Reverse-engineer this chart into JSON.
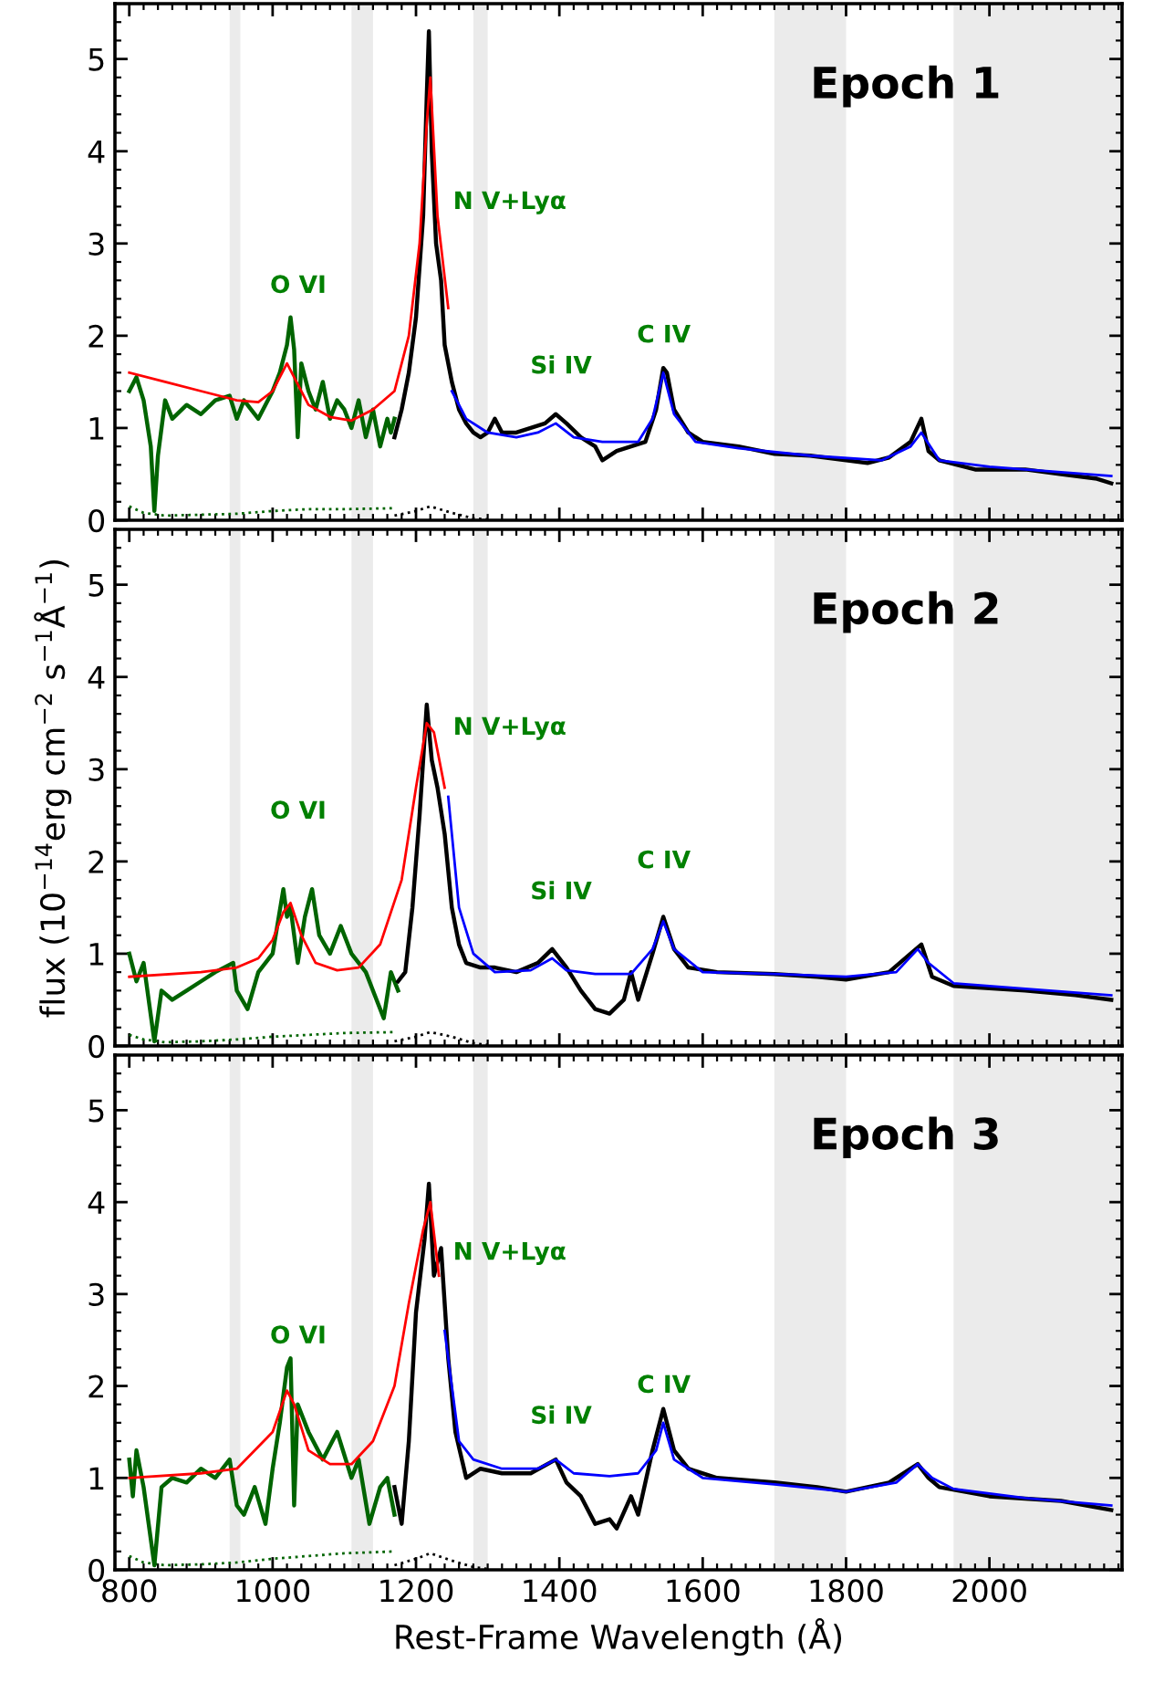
{
  "chart_data": [
    {
      "type": "line",
      "title": "Epoch 1",
      "xlim": [
        780,
        2185
      ],
      "ylim": [
        0,
        5.6
      ],
      "xticks": [
        800,
        1000,
        1200,
        1400,
        1600,
        1800,
        2000
      ],
      "yticks": [
        0,
        1,
        2,
        3,
        4,
        5
      ],
      "tick_labels": "y",
      "grid": false,
      "legend": false,
      "marker": "none",
      "bands": [
        {
          "axis": "x",
          "from": 940,
          "to": 955,
          "color": "#ebebeb"
        },
        {
          "axis": "x",
          "from": 1110,
          "to": 1140,
          "color": "#ebebeb"
        },
        {
          "axis": "x",
          "from": 1280,
          "to": 1300,
          "color": "#ebebeb"
        },
        {
          "axis": "x",
          "from": 1700,
          "to": 1800,
          "color": "#ebebeb"
        },
        {
          "axis": "x",
          "from": 1950,
          "to": 2185,
          "color": "#ebebeb"
        }
      ],
      "annotations": [
        "O VI",
        "N V+Lyα",
        "Si IV",
        "C IV"
      ],
      "series": [
        {
          "color": "#006400",
          "line_style": "solid",
          "x": [
            800,
            810,
            820,
            830,
            835,
            840,
            850,
            860,
            880,
            900,
            920,
            940,
            950,
            960,
            980,
            1000,
            1010,
            1020,
            1025,
            1030,
            1035,
            1040,
            1050,
            1060,
            1070,
            1080,
            1090,
            1100,
            1110,
            1120,
            1130,
            1140,
            1150,
            1160,
            1165,
            1170
          ],
          "values": [
            1.4,
            1.55,
            1.3,
            0.8,
            0.1,
            0.7,
            1.3,
            1.1,
            1.25,
            1.15,
            1.3,
            1.35,
            1.1,
            1.3,
            1.1,
            1.4,
            1.6,
            1.9,
            2.2,
            1.85,
            0.9,
            1.7,
            1.4,
            1.2,
            1.5,
            1.1,
            1.3,
            1.2,
            1.0,
            1.3,
            0.9,
            1.2,
            0.8,
            1.1,
            0.95,
            1.1
          ]
        },
        {
          "color": "#000000",
          "line_style": "solid",
          "x": [
            1170,
            1180,
            1190,
            1200,
            1210,
            1215,
            1218,
            1222,
            1228,
            1235,
            1240,
            1250,
            1260,
            1270,
            1280,
            1290,
            1300,
            1310,
            1320,
            1340,
            1360,
            1380,
            1395,
            1410,
            1430,
            1450,
            1460,
            1480,
            1500,
            1520,
            1535,
            1545,
            1550,
            1560,
            1580,
            1600,
            1650,
            1700,
            1750,
            1800,
            1830,
            1860,
            1890,
            1905,
            1915,
            1930,
            1980,
            2050,
            2100,
            2150,
            2170
          ],
          "values": [
            0.9,
            1.2,
            1.6,
            2.2,
            3.3,
            4.6,
            5.3,
            4.0,
            3.0,
            2.6,
            1.9,
            1.5,
            1.2,
            1.05,
            0.95,
            0.9,
            0.95,
            1.1,
            0.95,
            0.95,
            1.0,
            1.05,
            1.15,
            1.05,
            0.9,
            0.8,
            0.65,
            0.75,
            0.8,
            0.85,
            1.2,
            1.65,
            1.6,
            1.2,
            0.95,
            0.85,
            0.8,
            0.72,
            0.7,
            0.65,
            0.62,
            0.68,
            0.85,
            1.1,
            0.75,
            0.65,
            0.55,
            0.55,
            0.5,
            0.45,
            0.4
          ]
        },
        {
          "color": "#ff0000",
          "line_style": "solid",
          "x": [
            800,
            850,
            900,
            950,
            980,
            1000,
            1020,
            1030,
            1050,
            1080,
            1110,
            1140,
            1170,
            1190,
            1205,
            1215,
            1220,
            1230,
            1245
          ],
          "values": [
            1.6,
            1.5,
            1.4,
            1.3,
            1.28,
            1.4,
            1.7,
            1.55,
            1.25,
            1.12,
            1.08,
            1.2,
            1.4,
            2.0,
            3.0,
            4.3,
            4.8,
            3.3,
            2.3
          ]
        },
        {
          "color": "#0000ff",
          "line_style": "solid",
          "x": [
            1250,
            1270,
            1300,
            1340,
            1370,
            1395,
            1420,
            1460,
            1510,
            1530,
            1545,
            1560,
            1590,
            1650,
            1750,
            1850,
            1890,
            1905,
            1930,
            2000,
            2100,
            2170
          ],
          "values": [
            1.4,
            1.1,
            0.95,
            0.9,
            0.95,
            1.05,
            0.9,
            0.85,
            0.85,
            1.1,
            1.6,
            1.15,
            0.85,
            0.78,
            0.7,
            0.65,
            0.8,
            0.95,
            0.65,
            0.58,
            0.52,
            0.48
          ]
        },
        {
          "color": "#006400",
          "line_style": "dotted",
          "x": [
            800,
            820,
            850,
            900,
            950,
            1000,
            1050,
            1100,
            1170
          ],
          "values": [
            0.15,
            0.08,
            0.05,
            0.06,
            0.07,
            0.1,
            0.12,
            0.12,
            0.13
          ]
        },
        {
          "color": "#000000",
          "line_style": "dotted",
          "x": [
            1170,
            1200,
            1220,
            1250,
            1280,
            1300
          ],
          "values": [
            0.05,
            0.1,
            0.15,
            0.08,
            0.02,
            0.01
          ]
        }
      ]
    },
    {
      "type": "line",
      "title": "Epoch 2",
      "ylabel": "flux (10$^{−14}$erg cm$^{−2}$ s$^{−1}$Å$^{−1}$)",
      "xlim": [
        780,
        2185
      ],
      "ylim": [
        0,
        5.6
      ],
      "xticks": [
        800,
        1000,
        1200,
        1400,
        1600,
        1800,
        2000
      ],
      "yticks": [
        0,
        1,
        2,
        3,
        4,
        5
      ],
      "tick_labels": "y",
      "grid": false,
      "legend": false,
      "marker": "none",
      "bands": [
        {
          "axis": "x",
          "from": 940,
          "to": 955,
          "color": "#ebebeb"
        },
        {
          "axis": "x",
          "from": 1110,
          "to": 1140,
          "color": "#ebebeb"
        },
        {
          "axis": "x",
          "from": 1280,
          "to": 1300,
          "color": "#ebebeb"
        },
        {
          "axis": "x",
          "from": 1700,
          "to": 1800,
          "color": "#ebebeb"
        },
        {
          "axis": "x",
          "from": 1950,
          "to": 2185,
          "color": "#ebebeb"
        }
      ],
      "annotations": [
        "O VI",
        "N V+Lyα",
        "Si IV",
        "C IV"
      ],
      "series": [
        {
          "color": "#006400",
          "line_style": "solid",
          "x": [
            800,
            810,
            820,
            835,
            845,
            860,
            880,
            900,
            920,
            945,
            950,
            965,
            980,
            1000,
            1015,
            1020,
            1025,
            1035,
            1045,
            1055,
            1065,
            1080,
            1095,
            1110,
            1130,
            1145,
            1155,
            1165,
            1175
          ],
          "values": [
            1.0,
            0.7,
            0.9,
            0.05,
            0.6,
            0.5,
            0.6,
            0.7,
            0.8,
            0.9,
            0.6,
            0.4,
            0.8,
            1.0,
            1.7,
            1.4,
            1.5,
            0.9,
            1.4,
            1.7,
            1.2,
            1.0,
            1.3,
            1.0,
            0.8,
            0.5,
            0.3,
            0.8,
            0.6
          ]
        },
        {
          "color": "#000000",
          "line_style": "solid",
          "x": [
            1175,
            1185,
            1195,
            1205,
            1215,
            1222,
            1230,
            1240,
            1250,
            1260,
            1270,
            1290,
            1310,
            1340,
            1370,
            1390,
            1410,
            1430,
            1450,
            1470,
            1490,
            1500,
            1510,
            1530,
            1545,
            1560,
            1580,
            1620,
            1700,
            1760,
            1800,
            1860,
            1890,
            1905,
            1920,
            1950,
            2050,
            2120,
            2170
          ],
          "values": [
            0.7,
            0.8,
            1.5,
            2.5,
            3.7,
            3.1,
            2.8,
            2.3,
            1.5,
            1.1,
            0.9,
            0.85,
            0.85,
            0.8,
            0.9,
            1.05,
            0.85,
            0.6,
            0.4,
            0.35,
            0.5,
            0.8,
            0.5,
            1.0,
            1.4,
            1.05,
            0.85,
            0.8,
            0.78,
            0.75,
            0.72,
            0.8,
            1.0,
            1.1,
            0.75,
            0.65,
            0.6,
            0.55,
            0.5
          ]
        },
        {
          "color": "#ff0000",
          "line_style": "solid",
          "x": [
            800,
            900,
            950,
            980,
            1000,
            1015,
            1025,
            1040,
            1060,
            1090,
            1120,
            1150,
            1180,
            1200,
            1215,
            1225,
            1240
          ],
          "values": [
            0.75,
            0.8,
            0.85,
            0.95,
            1.15,
            1.45,
            1.55,
            1.2,
            0.9,
            0.82,
            0.85,
            1.1,
            1.8,
            2.8,
            3.5,
            3.4,
            2.8
          ]
        },
        {
          "color": "#0000ff",
          "line_style": "solid",
          "x": [
            1245,
            1260,
            1280,
            1310,
            1360,
            1390,
            1410,
            1450,
            1500,
            1530,
            1545,
            1560,
            1600,
            1700,
            1800,
            1870,
            1900,
            1915,
            1950,
            2050,
            2170
          ],
          "values": [
            2.7,
            1.5,
            1.0,
            0.8,
            0.82,
            0.95,
            0.82,
            0.78,
            0.78,
            1.05,
            1.35,
            1.05,
            0.8,
            0.78,
            0.75,
            0.8,
            1.05,
            0.9,
            0.68,
            0.62,
            0.55
          ]
        },
        {
          "color": "#006400",
          "line_style": "dotted",
          "x": [
            800,
            820,
            850,
            900,
            950,
            1000,
            1050,
            1100,
            1170
          ],
          "values": [
            0.12,
            0.07,
            0.04,
            0.05,
            0.07,
            0.1,
            0.12,
            0.14,
            0.15
          ]
        },
        {
          "color": "#000000",
          "line_style": "dotted",
          "x": [
            1170,
            1200,
            1220,
            1250,
            1280,
            1300
          ],
          "values": [
            0.05,
            0.1,
            0.15,
            0.1,
            0.03,
            0.01
          ]
        }
      ]
    },
    {
      "type": "line",
      "title": "Epoch 3",
      "xlabel": "Rest-Frame Wavelength (Å)",
      "xlim": [
        780,
        2185
      ],
      "ylim": [
        0,
        5.6
      ],
      "xticks": [
        800,
        1000,
        1200,
        1400,
        1600,
        1800,
        2000
      ],
      "yticks": [
        0,
        1,
        2,
        3,
        4,
        5
      ],
      "grid": false,
      "legend": false,
      "marker": "none",
      "bands": [
        {
          "axis": "x",
          "from": 940,
          "to": 955,
          "color": "#ebebeb"
        },
        {
          "axis": "x",
          "from": 1110,
          "to": 1140,
          "color": "#ebebeb"
        },
        {
          "axis": "x",
          "from": 1280,
          "to": 1300,
          "color": "#ebebeb"
        },
        {
          "axis": "x",
          "from": 1700,
          "to": 1800,
          "color": "#ebebeb"
        },
        {
          "axis": "x",
          "from": 1950,
          "to": 2185,
          "color": "#ebebeb"
        }
      ],
      "annotations": [
        "O VI",
        "N V+Lyα",
        "Si IV",
        "C IV"
      ],
      "series": [
        {
          "color": "#006400",
          "line_style": "solid",
          "x": [
            800,
            805,
            810,
            820,
            835,
            845,
            860,
            880,
            900,
            920,
            940,
            950,
            960,
            975,
            990,
            1000,
            1010,
            1020,
            1025,
            1030,
            1035,
            1050,
            1070,
            1090,
            1110,
            1120,
            1135,
            1150,
            1160,
            1170
          ],
          "values": [
            1.2,
            0.8,
            1.3,
            0.9,
            0.05,
            0.9,
            1.0,
            0.95,
            1.1,
            1.0,
            1.2,
            0.7,
            0.6,
            0.9,
            0.5,
            1.1,
            1.6,
            2.2,
            2.3,
            0.7,
            1.8,
            1.5,
            1.2,
            1.5,
            1.0,
            1.2,
            0.5,
            0.9,
            1.0,
            0.6
          ]
        },
        {
          "color": "#000000",
          "line_style": "solid",
          "x": [
            1170,
            1180,
            1190,
            1200,
            1212,
            1218,
            1225,
            1235,
            1245,
            1255,
            1270,
            1290,
            1320,
            1360,
            1395,
            1410,
            1430,
            1450,
            1470,
            1480,
            1500,
            1510,
            1530,
            1545,
            1560,
            1580,
            1620,
            1700,
            1760,
            1800,
            1860,
            1900,
            1915,
            1930,
            2000,
            2100,
            2170
          ],
          "values": [
            0.9,
            0.5,
            1.4,
            2.8,
            3.6,
            4.2,
            3.2,
            3.5,
            2.3,
            1.5,
            1.0,
            1.1,
            1.05,
            1.05,
            1.2,
            0.95,
            0.8,
            0.5,
            0.55,
            0.45,
            0.8,
            0.6,
            1.3,
            1.75,
            1.3,
            1.1,
            1.0,
            0.95,
            0.9,
            0.85,
            0.95,
            1.15,
            1.0,
            0.9,
            0.8,
            0.75,
            0.65
          ]
        },
        {
          "color": "#ff0000",
          "line_style": "solid",
          "x": [
            800,
            900,
            950,
            1000,
            1020,
            1030,
            1050,
            1080,
            1110,
            1140,
            1170,
            1190,
            1210,
            1220,
            1232
          ],
          "values": [
            1.0,
            1.05,
            1.1,
            1.5,
            1.95,
            1.8,
            1.3,
            1.15,
            1.15,
            1.4,
            2.0,
            2.9,
            3.7,
            4.0,
            3.2
          ]
        },
        {
          "color": "#0000ff",
          "line_style": "solid",
          "x": [
            1240,
            1260,
            1280,
            1320,
            1370,
            1395,
            1420,
            1470,
            1510,
            1535,
            1545,
            1560,
            1600,
            1700,
            1800,
            1870,
            1900,
            1920,
            1950,
            2050,
            2170
          ],
          "values": [
            2.6,
            1.4,
            1.2,
            1.1,
            1.1,
            1.2,
            1.05,
            1.02,
            1.05,
            1.3,
            1.6,
            1.2,
            1.0,
            0.93,
            0.85,
            0.95,
            1.15,
            1.0,
            0.88,
            0.78,
            0.7
          ]
        },
        {
          "color": "#006400",
          "line_style": "dotted",
          "x": [
            800,
            820,
            850,
            900,
            950,
            1000,
            1050,
            1100,
            1170
          ],
          "values": [
            0.15,
            0.08,
            0.05,
            0.06,
            0.08,
            0.12,
            0.15,
            0.18,
            0.2
          ]
        },
        {
          "color": "#000000",
          "line_style": "dotted",
          "x": [
            1170,
            1200,
            1220,
            1250,
            1280,
            1300
          ],
          "values": [
            0.05,
            0.12,
            0.18,
            0.1,
            0.03,
            0.01
          ]
        }
      ]
    }
  ]
}
